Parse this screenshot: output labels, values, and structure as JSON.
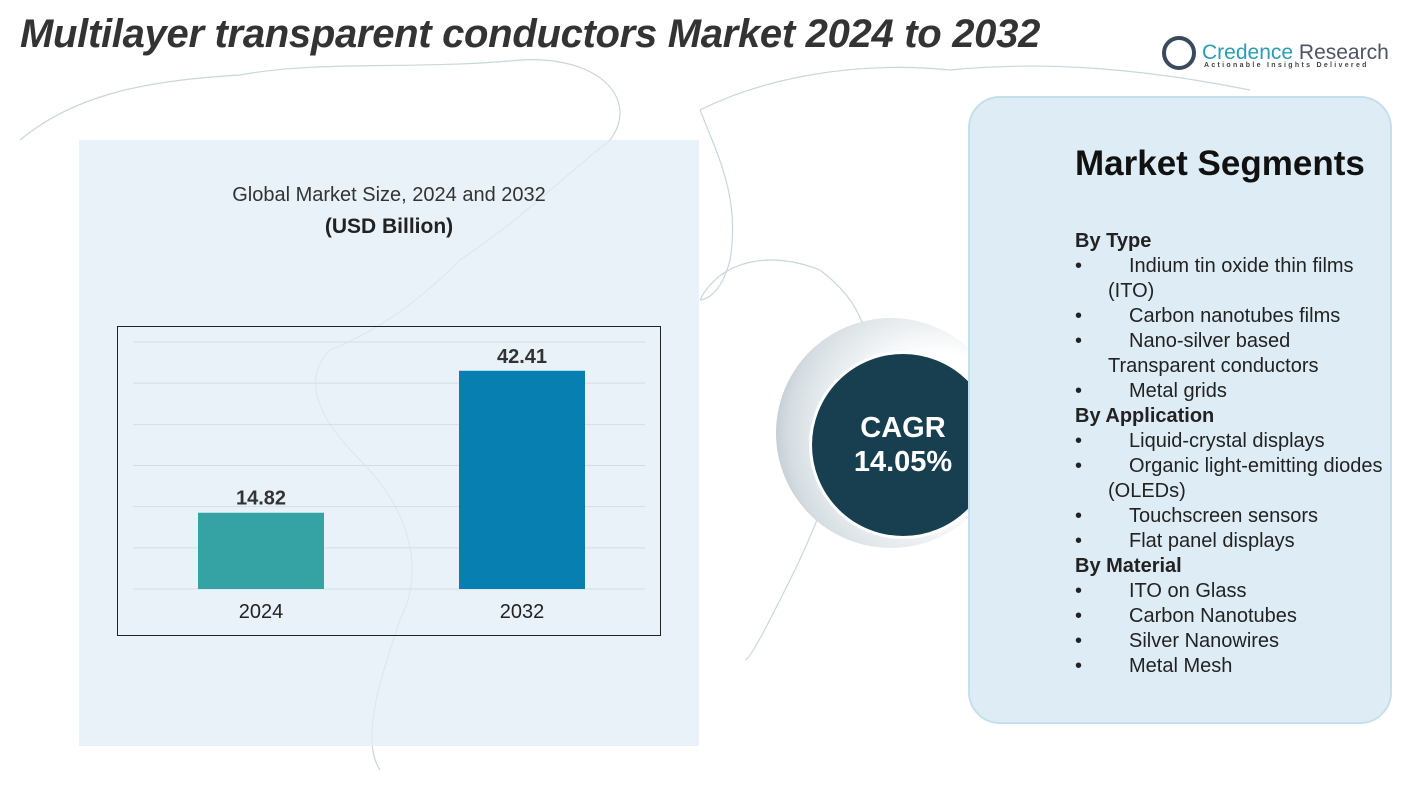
{
  "title": "Multilayer transparent conductors Market 2024 to 2032",
  "logo": {
    "name": "Credence",
    "name2": "Research",
    "tagline": "Actionable Insights Delivered"
  },
  "chart_data": {
    "type": "bar",
    "title": "Global Market Size, 2024 and 2032",
    "unit_label": "(USD Billion)",
    "categories": [
      "2024",
      "2032"
    ],
    "values": [
      14.82,
      42.41
    ],
    "value_labels": [
      "14.82",
      "42.41"
    ],
    "colors": [
      "#35a3a3",
      "#087fb1"
    ],
    "ylim": [
      0,
      48
    ],
    "grid": true,
    "xlabel": "",
    "ylabel": ""
  },
  "cagr": {
    "label": "CAGR",
    "value": "14.05%"
  },
  "segments": {
    "title": "Market Segments",
    "groups": [
      {
        "heading": "By Type",
        "items": [
          "Indium tin oxide thin films (ITO)",
          "Carbon nanotubes films",
          "Nano-silver based Transparent conductors",
          "Metal grids"
        ]
      },
      {
        "heading": "By Application",
        "items": [
          "Liquid-crystal displays",
          "Organic light-emitting diodes (OLEDs)",
          "Touchscreen sensors",
          "Flat panel displays"
        ]
      },
      {
        "heading": "By Material",
        "items": [
          "ITO on Glass",
          "Carbon Nanotubes",
          "Silver Nanowires",
          "Metal Mesh"
        ]
      }
    ]
  }
}
